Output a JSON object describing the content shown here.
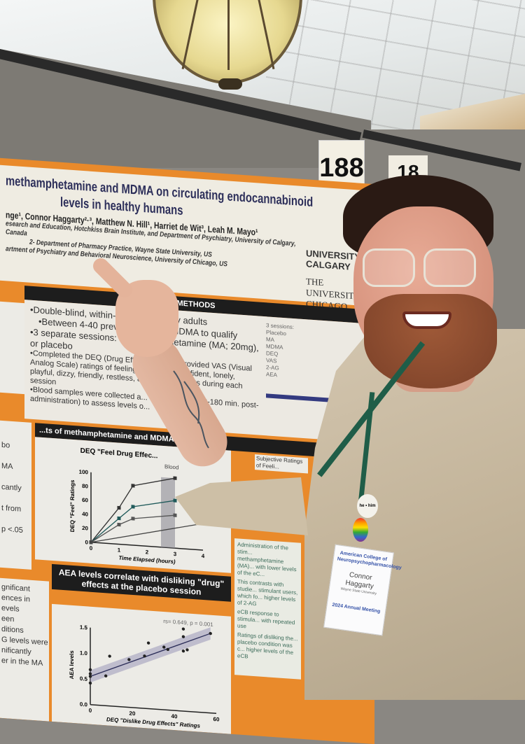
{
  "sign": {
    "number": "188",
    "next_number": "18"
  },
  "poster": {
    "title_line1": "methamphetamine and MDMA on circulating endocannabinoid",
    "title_line2": "levels in healthy humans",
    "authors": "nge¹, Connor Haggarty²·³, Matthew N. Hill¹, Harriet de Wit³, Leah M. Mayo¹",
    "affiliations": [
      "esearch and Education, Hotchkiss Brain Institute, and Department of Psychiatry, University of Calgary, Canada",
      "2- Department of Pharmacy Practice, Wayne State University, US",
      "artment of Psychiatry and Behavioral Neuroscience, University of Chicago, US"
    ],
    "logos": {
      "calgary": "UNIVERSITY CALGARY",
      "chicago": "THE UNIVERSITY CHICAGO"
    },
    "methods": {
      "header": "METHODS",
      "bullets": [
        "•Double-blind, within-par... 22 healthy adults",
        "•Between 4-40 previou... es with MDMA to qualify",
        "•3 separate sessions: MDM... amphetamine (MA; 20mg), or placebo",
        "•Completed the DEQ (Drug Eff... naire) and provided VAS (Visual Analog Scale) ratings of feeling... sociable, confident, lonely, playful, dizzy, friendly, restless, and anx... e points during each session",
        "•Blood samples were collected a... drug effects (150-180 min. post-administration) to assess levels o..."
      ],
      "diagram": {
        "sessions_label": "3 sessions:",
        "sessions": [
          "Placebo",
          "MA",
          "MDMA"
        ],
        "measures": [
          "DEQ",
          "VAS"
        ],
        "assays": [
          "2-AG",
          "AEA"
        ]
      }
    },
    "results_header": "...ts of methamphetamine and MDMA",
    "subjective_label": "Subjective Ratings of Feeli...",
    "left_fragments": [
      "bo",
      "MA",
      "cantly",
      "t from",
      "p <.05",
      "gnificant",
      "ences in",
      "evels",
      "een",
      "ditions",
      "G levels were",
      "nificantly",
      "er in the MA"
    ],
    "conclusions": [
      "Administration of the stim... methamphetamine (MA)... with lower levels of the eC...",
      "This contrasts with studie... stimulant users, which fo... higher levels of 2-AG",
      "eCB response to stimula... with repeated use",
      "Ratings of disliking the... placebo condition was c... higher levels of the eCB"
    ]
  },
  "chart_data": [
    {
      "type": "line",
      "title": "DEQ \"Feel Drug Effec...",
      "annotation": "Blood",
      "xlabel": "Time Elapsed (hours)",
      "ylabel": "DEQ \"Feel\" Ratings",
      "xlim": [
        0,
        4
      ],
      "ylim": [
        0,
        100
      ],
      "xticks": [
        "0",
        "1",
        "2",
        "3",
        "4"
      ],
      "yticks": [
        "0",
        "20",
        "40",
        "60",
        "80",
        "100"
      ],
      "series": [
        {
          "x": [
            0,
            1,
            1.5,
            3
          ],
          "y": [
            0,
            52,
            85,
            100
          ]
        },
        {
          "x": [
            0,
            1,
            1.5,
            3
          ],
          "y": [
            0,
            37,
            55,
            68
          ]
        },
        {
          "x": [
            0,
            1,
            1.5,
            3
          ],
          "y": [
            0,
            28,
            38,
            47
          ]
        },
        {
          "x": [
            0,
            4
          ],
          "y": [
            0,
            38
          ]
        }
      ]
    },
    {
      "type": "scatter",
      "title": "AEA levels correlate with disliking \"drug\" effects at the placebo session",
      "annotation": "rs= 0.649, p = 0.001",
      "xlabel": "DEQ \"Dislike Drug Effects\" Ratings",
      "ylabel": "AEA levels",
      "xlim": [
        0,
        65
      ],
      "ylim": [
        0,
        1.5
      ],
      "xticks": [
        "0",
        "20",
        "40",
        "60"
      ],
      "yticks": [
        "0.0",
        "0.5",
        "1.0",
        "1.5"
      ],
      "points": [
        [
          0,
          0.68
        ],
        [
          0,
          0.6
        ],
        [
          0,
          0.55
        ],
        [
          0,
          0.42
        ],
        [
          8,
          0.58
        ],
        [
          10,
          0.97
        ],
        [
          20,
          0.93
        ],
        [
          28,
          1.02
        ],
        [
          30,
          1.28
        ],
        [
          38,
          1.22
        ],
        [
          40,
          1.18
        ],
        [
          48,
          1.6
        ],
        [
          48,
          1.45
        ],
        [
          48,
          1.17
        ],
        [
          50,
          1.2
        ],
        [
          62,
          1.55
        ]
      ],
      "fit": {
        "x": [
          0,
          62
        ],
        "y": [
          0.55,
          1.55
        ]
      }
    }
  ],
  "badge": {
    "org": "American College of Neuropsychopharmacology",
    "name_first": "Connor",
    "name_last": "Haggarty",
    "affiliation": "Wayne State University",
    "meeting": "2024 Annual Meeting",
    "pin_text": "he • him"
  }
}
